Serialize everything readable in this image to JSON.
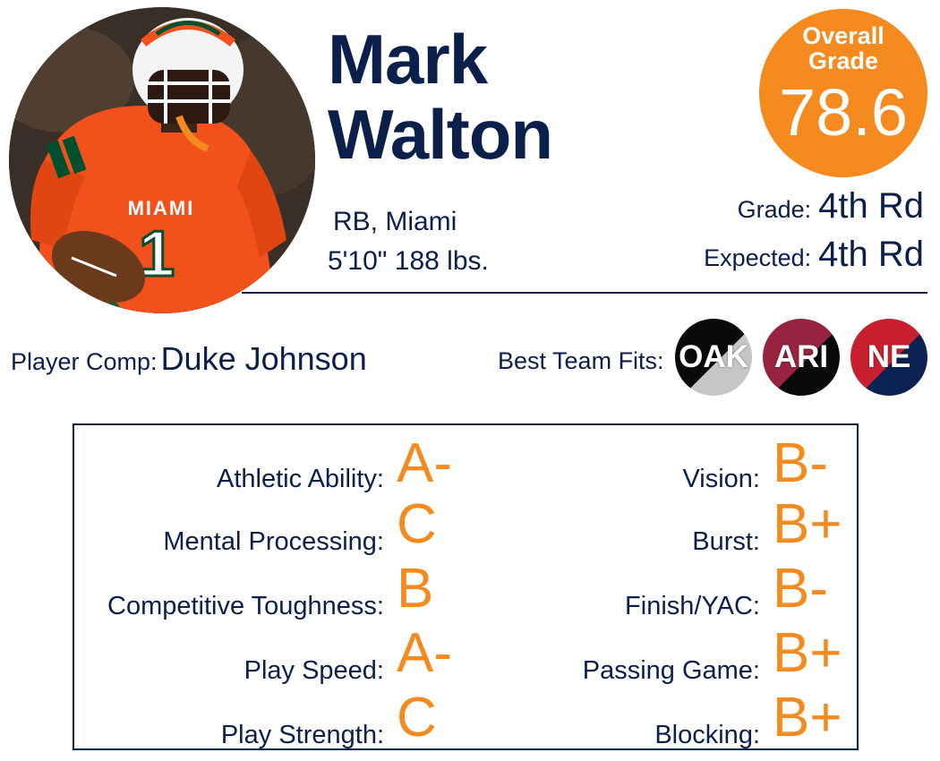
{
  "player": {
    "first_name": "Mark",
    "last_name": "Walton",
    "position_school": "RB, Miami",
    "height_weight": "5'10\" 188 lbs."
  },
  "overall": {
    "label": "Overall Grade",
    "value": "78.6"
  },
  "draft": {
    "grade_label": "Grade:",
    "grade_value": "4th Rd",
    "expected_label": "Expected:",
    "expected_value": "4th Rd"
  },
  "comp": {
    "label": "Player Comp:",
    "value": "Duke Johnson"
  },
  "team_fits": {
    "label": "Best Team Fits:",
    "teams": [
      {
        "abbr": "OAK",
        "color_top": "#0a0a0a",
        "color_bottom": "#c4c6c8"
      },
      {
        "abbr": "ARI",
        "color_top": "#97233f",
        "color_bottom": "#0a0a0a"
      },
      {
        "abbr": "NE",
        "color_top": "#c8202f",
        "color_bottom": "#0b2252"
      }
    ]
  },
  "grades": {
    "left": [
      {
        "label": "Athletic Ability:",
        "grade": "A-"
      },
      {
        "label": "Mental Processing:",
        "grade": "C"
      },
      {
        "label": "Competitive Toughness:",
        "grade": "B"
      },
      {
        "label": "Play Speed:",
        "grade": "A-"
      },
      {
        "label": "Play Strength:",
        "grade": "C"
      }
    ],
    "right": [
      {
        "label": "Vision:",
        "grade": "B-"
      },
      {
        "label": "Burst:",
        "grade": "B+"
      },
      {
        "label": "Finish/YAC:",
        "grade": "B-"
      },
      {
        "label": "Passing Game:",
        "grade": "B+"
      },
      {
        "label": "Blocking:",
        "grade": "B+"
      }
    ]
  },
  "photo": {
    "jersey_text": "MIAMI",
    "jersey_number": "1",
    "colors": {
      "jersey": "#f2511b",
      "helmet": "#f4f4f4",
      "accent": "#005030"
    }
  },
  "colors": {
    "navy": "#0b1f4b",
    "orange": "#f58a1f"
  }
}
